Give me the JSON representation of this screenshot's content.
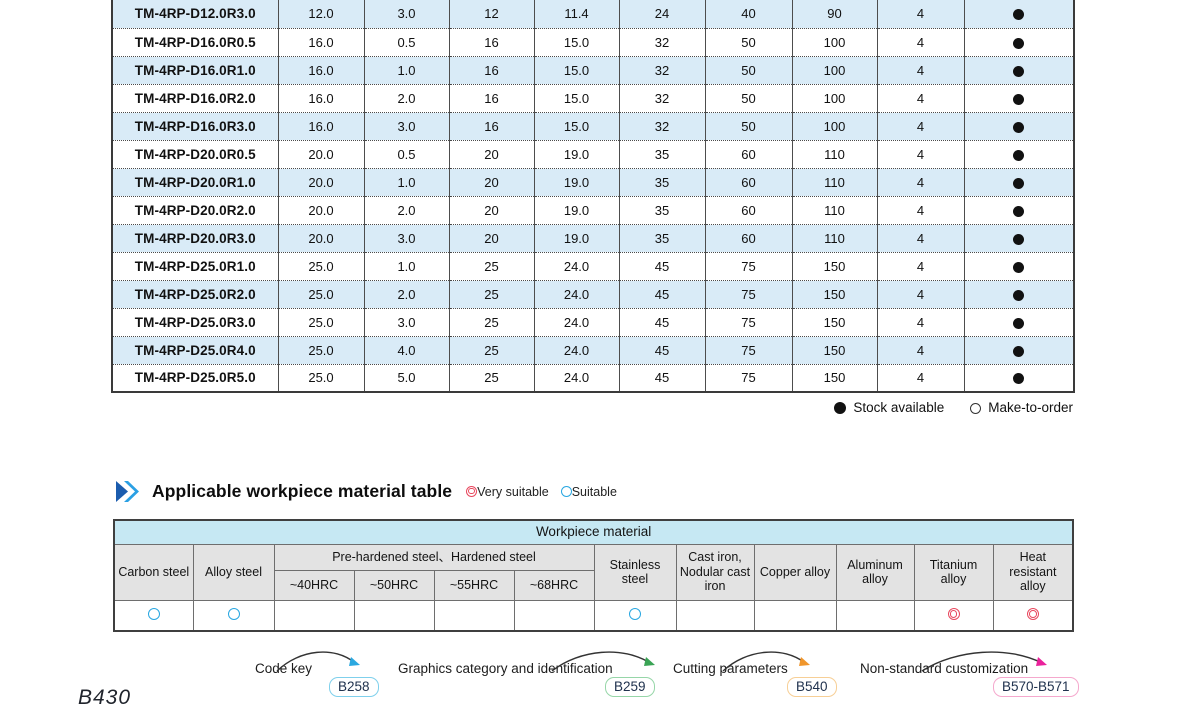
{
  "catalog_table": {
    "rows": [
      {
        "model": "TM-4RP-D12.0R3.0",
        "values": [
          "12.0",
          "3.0",
          "12",
          "11.4",
          "24",
          "40",
          "90",
          "4"
        ],
        "stock": "●"
      },
      {
        "model": "TM-4RP-D16.0R0.5",
        "values": [
          "16.0",
          "0.5",
          "16",
          "15.0",
          "32",
          "50",
          "100",
          "4"
        ],
        "stock": "●"
      },
      {
        "model": "TM-4RP-D16.0R1.0",
        "values": [
          "16.0",
          "1.0",
          "16",
          "15.0",
          "32",
          "50",
          "100",
          "4"
        ],
        "stock": "●"
      },
      {
        "model": "TM-4RP-D16.0R2.0",
        "values": [
          "16.0",
          "2.0",
          "16",
          "15.0",
          "32",
          "50",
          "100",
          "4"
        ],
        "stock": "●"
      },
      {
        "model": "TM-4RP-D16.0R3.0",
        "values": [
          "16.0",
          "3.0",
          "16",
          "15.0",
          "32",
          "50",
          "100",
          "4"
        ],
        "stock": "●"
      },
      {
        "model": "TM-4RP-D20.0R0.5",
        "values": [
          "20.0",
          "0.5",
          "20",
          "19.0",
          "35",
          "60",
          "110",
          "4"
        ],
        "stock": "●"
      },
      {
        "model": "TM-4RP-D20.0R1.0",
        "values": [
          "20.0",
          "1.0",
          "20",
          "19.0",
          "35",
          "60",
          "110",
          "4"
        ],
        "stock": "●"
      },
      {
        "model": "TM-4RP-D20.0R2.0",
        "values": [
          "20.0",
          "2.0",
          "20",
          "19.0",
          "35",
          "60",
          "110",
          "4"
        ],
        "stock": "●"
      },
      {
        "model": "TM-4RP-D20.0R3.0",
        "values": [
          "20.0",
          "3.0",
          "20",
          "19.0",
          "35",
          "60",
          "110",
          "4"
        ],
        "stock": "●"
      },
      {
        "model": "TM-4RP-D25.0R1.0",
        "values": [
          "25.0",
          "1.0",
          "25",
          "24.0",
          "45",
          "75",
          "150",
          "4"
        ],
        "stock": "●"
      },
      {
        "model": "TM-4RP-D25.0R2.0",
        "values": [
          "25.0",
          "2.0",
          "25",
          "24.0",
          "45",
          "75",
          "150",
          "4"
        ],
        "stock": "●"
      },
      {
        "model": "TM-4RP-D25.0R3.0",
        "values": [
          "25.0",
          "3.0",
          "25",
          "24.0",
          "45",
          "75",
          "150",
          "4"
        ],
        "stock": "●"
      },
      {
        "model": "TM-4RP-D25.0R4.0",
        "values": [
          "25.0",
          "4.0",
          "25",
          "24.0",
          "45",
          "75",
          "150",
          "4"
        ],
        "stock": "●"
      },
      {
        "model": "TM-4RP-D25.0R5.0",
        "values": [
          "25.0",
          "5.0",
          "25",
          "24.0",
          "45",
          "75",
          "150",
          "4"
        ],
        "stock": "●"
      }
    ],
    "legend": {
      "stock_available": "Stock available",
      "make_to_order": "Make-to-order"
    }
  },
  "section": {
    "title": "Applicable workpiece material table",
    "legend_very_suitable": "Very suitable",
    "legend_suitable": "Suitable"
  },
  "workpiece_table": {
    "title": "Workpiece material",
    "group_header": "Pre-hardened steel、Hardened steel",
    "columns": [
      "Carbon steel",
      "Alloy steel",
      "~40HRC",
      "~50HRC",
      "~55HRC",
      "~68HRC",
      "Stainless steel",
      "Cast iron, Nodular cast iron",
      "Copper alloy",
      "Aluminum alloy",
      "Titanium alloy",
      "Heat resistant alloy"
    ],
    "ratings": [
      "suitable",
      "suitable",
      "",
      "",
      "",
      "",
      "suitable",
      "",
      "",
      "",
      "very_suitable",
      "very_suitable"
    ]
  },
  "footer_links": [
    {
      "label": "Code key",
      "page": "B258",
      "arrow_color": "#2ba8e0",
      "box_border": "#7fd0ec"
    },
    {
      "label": "Graphics category and identification",
      "page": "B259",
      "arrow_color": "#3aa455",
      "box_border": "#96d6a8"
    },
    {
      "label": "Cutting parameters",
      "page": "B540",
      "arrow_color": "#f0962c",
      "box_border": "#f7cf96"
    },
    {
      "label": "Non-standard customization",
      "page": "B570-B571",
      "arrow_color": "#ea219b",
      "box_border": "#f5a8cd"
    }
  ],
  "page_number": "B430",
  "colors": {
    "row_highlight": "#d9ebf7",
    "workpiece_title_bg": "#c6e8f3",
    "header_bg": "#e3e3e3",
    "suitable": "#29a7e1",
    "very_suitable": "#e8485e"
  }
}
